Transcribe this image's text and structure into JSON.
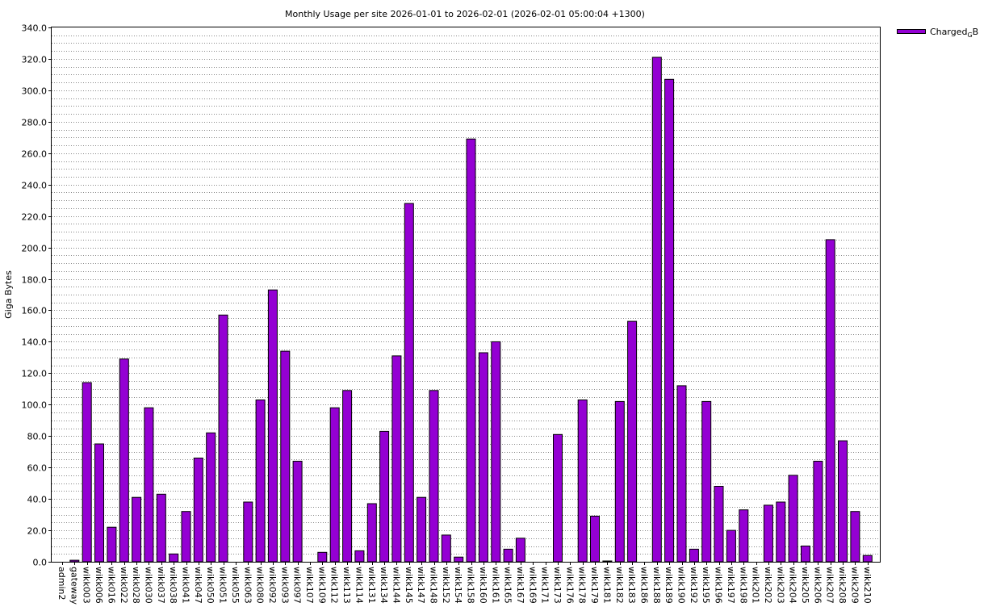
{
  "chart_data": {
    "type": "bar",
    "title": "Monthly Usage per site 2026-01-01 to 2026-02-01 (2026-02-01 05:00:04 +1300)",
    "xlabel": "",
    "ylabel": "Giga Bytes",
    "ylim": [
      0,
      340
    ],
    "y_ticks": [
      "0.0",
      "20.0",
      "40.0",
      "60.0",
      "80.0",
      "100.0",
      "120.0",
      "140.0",
      "160.0",
      "180.0",
      "200.0",
      "220.0",
      "240.0",
      "260.0",
      "280.0",
      "300.0",
      "320.0",
      "340.0"
    ],
    "grid": true,
    "legend_position": "top-right",
    "bar_color": "#9400d3",
    "categories": [
      "admin2",
      "gateway",
      "wikk003",
      "wikk006",
      "wikk016",
      "wikk022",
      "wikk028",
      "wikk030",
      "wikk037",
      "wikk038",
      "wikk041",
      "wikk047",
      "wikk050",
      "wikk051",
      "wikk055",
      "wikk063",
      "wikk080",
      "wikk092",
      "wikk093",
      "wikk097",
      "wikk107",
      "wikk109",
      "wikk112",
      "wikk113",
      "wikk114",
      "wikk131",
      "wikk134",
      "wikk144",
      "wikk145",
      "wikk147",
      "wikk148",
      "wikk152",
      "wikk154",
      "wikk158",
      "wikk160",
      "wikk161",
      "wikk165",
      "wikk167",
      "wikk169",
      "wikk171",
      "wikk173",
      "wikk176",
      "wikk178",
      "wikk179",
      "wikk181",
      "wikk182",
      "wikk183",
      "wikk186",
      "wikk188",
      "wikk189",
      "wikk190",
      "wikk192",
      "wikk195",
      "wikk196",
      "wikk197",
      "wikk198",
      "wikk201",
      "wikk202",
      "wikk203",
      "wikk204",
      "wikk205",
      "wikk206",
      "wikk207",
      "wikk208",
      "wikk209",
      "wikk210"
    ],
    "series": [
      {
        "name": "Charged",
        "name_subscript": "G",
        "name_suffix": "B",
        "values": [
          0,
          1,
          114,
          75,
          22,
          129,
          41,
          98,
          43,
          5,
          32,
          66,
          82,
          157,
          0,
          38,
          103,
          173,
          134,
          64,
          0,
          6,
          98,
          109,
          7,
          37,
          83,
          131,
          228,
          41,
          109,
          17,
          3,
          269,
          133,
          140,
          8,
          15,
          0,
          0,
          81,
          0,
          103,
          29,
          0.5,
          102,
          153,
          0,
          321,
          307,
          112,
          8,
          102,
          48,
          20,
          33,
          0,
          36,
          38,
          55,
          10,
          64,
          205,
          77,
          32,
          4
        ]
      }
    ]
  }
}
